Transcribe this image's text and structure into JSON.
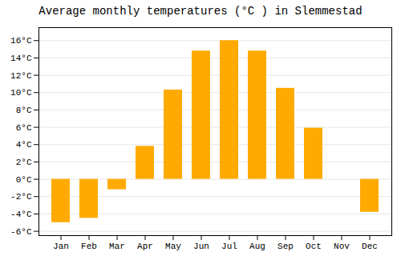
{
  "chart_data": {
    "type": "bar",
    "title": "Average monthly temperatures (°C ) in Slemmestad",
    "categories": [
      "Jan",
      "Feb",
      "Mar",
      "Apr",
      "May",
      "Jun",
      "Jul",
      "Aug",
      "Sep",
      "Oct",
      "Nov",
      "Dec"
    ],
    "values": [
      -5.0,
      -4.5,
      -1.2,
      3.8,
      10.3,
      14.8,
      16.0,
      14.8,
      10.5,
      5.9,
      0.0,
      -3.8
    ],
    "color": "#FFAA00",
    "ylim": [
      -6.5,
      17.5
    ],
    "yticks": [
      {
        "value": -6,
        "label": "-6°C"
      },
      {
        "value": -4,
        "label": "-4°C"
      },
      {
        "value": -2,
        "label": "-2°C"
      },
      {
        "value": 0,
        "label": "0°C"
      },
      {
        "value": 2,
        "label": "2°C"
      },
      {
        "value": 4,
        "label": "4°C"
      },
      {
        "value": 6,
        "label": "6°C"
      },
      {
        "value": 8,
        "label": "8°C"
      },
      {
        "value": 10,
        "label": "10°C"
      },
      {
        "value": 12,
        "label": "12°C"
      },
      {
        "value": 14,
        "label": "14°C"
      },
      {
        "value": 16,
        "label": "16°C"
      }
    ],
    "grid": true
  }
}
